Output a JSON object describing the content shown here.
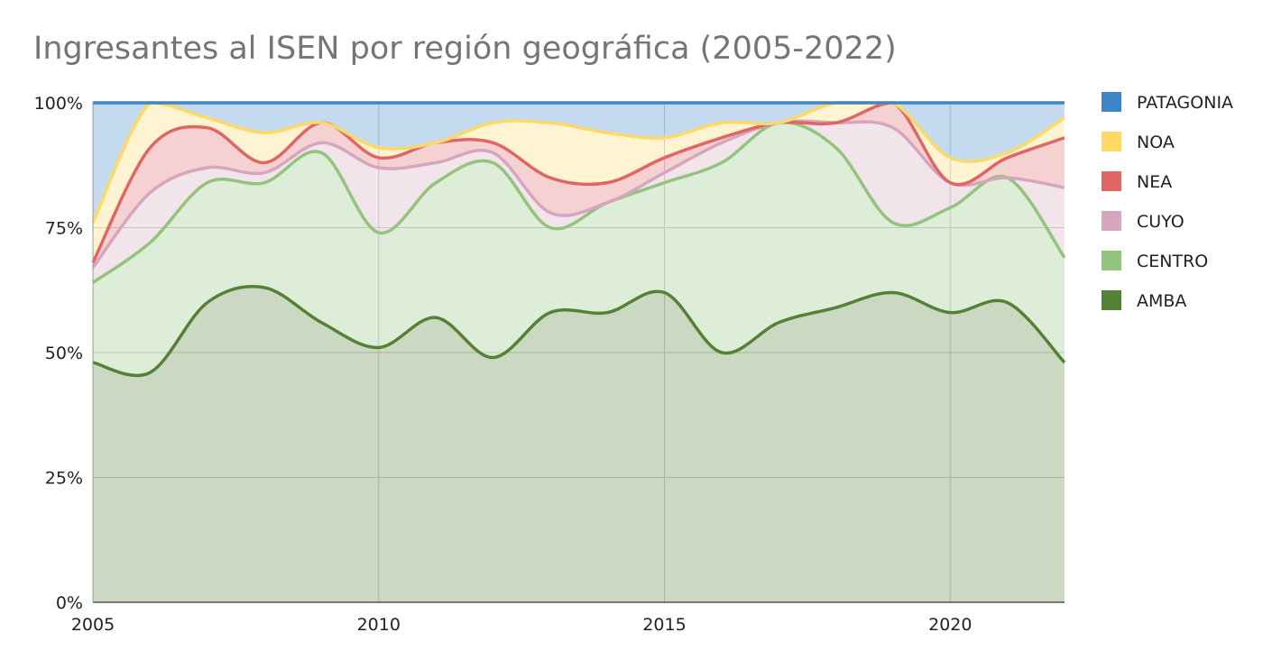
{
  "chart_data": {
    "type": "area",
    "stacked": "percent",
    "title": "Ingresantes al ISEN por región geográfica (2005-2022)",
    "xlabel": "",
    "ylabel": "",
    "x": [
      2005,
      2006,
      2007,
      2008,
      2009,
      2010,
      2011,
      2012,
      2013,
      2014,
      2015,
      2016,
      2017,
      2018,
      2019,
      2020,
      2021,
      2022
    ],
    "xlim": [
      2005,
      2022
    ],
    "ylim": [
      0,
      100
    ],
    "x_ticks": [
      "2005",
      "2010",
      "2015",
      "2020"
    ],
    "y_ticks": [
      "0%",
      "25%",
      "50%",
      "75%",
      "100%"
    ],
    "grid": true,
    "legend_position": "right",
    "series": [
      {
        "name": "AMBA",
        "color": "#548235",
        "values": [
          48,
          46,
          60,
          63,
          56,
          51,
          57,
          49,
          58,
          58,
          62,
          50,
          56,
          59,
          62,
          58,
          60,
          48
        ]
      },
      {
        "name": "CENTRO",
        "color": "#93C47D",
        "values": [
          16,
          26,
          24,
          21,
          34,
          23,
          27,
          39,
          17,
          22,
          22,
          38,
          40,
          32,
          14,
          21,
          25,
          21
        ]
      },
      {
        "name": "CUYO",
        "color": "#D5A6BD",
        "values": [
          3,
          10,
          3,
          2,
          2,
          13,
          4,
          2,
          3,
          0,
          2,
          4,
          0,
          5,
          19,
          5,
          0,
          14
        ]
      },
      {
        "name": "NEA",
        "color": "#E06666",
        "values": [
          1,
          9,
          8,
          2,
          4,
          2,
          4,
          2,
          7,
          4,
          3,
          1,
          0,
          0,
          5,
          0,
          4,
          10
        ]
      },
      {
        "name": "NOA",
        "color": "#FFD966",
        "values": [
          8,
          9,
          2,
          6,
          0,
          2,
          0,
          4,
          11,
          10,
          4,
          3,
          0,
          4,
          0,
          5,
          1,
          4
        ]
      },
      {
        "name": "PATAGONIA",
        "color": "#3D85C6",
        "values": [
          24,
          0,
          3,
          6,
          4,
          9,
          8,
          4,
          4,
          6,
          7,
          4,
          4,
          0,
          0,
          11,
          10,
          3
        ]
      }
    ],
    "legend_order": [
      "PATAGONIA",
      "NOA",
      "NEA",
      "CUYO",
      "CENTRO",
      "AMBA"
    ]
  }
}
